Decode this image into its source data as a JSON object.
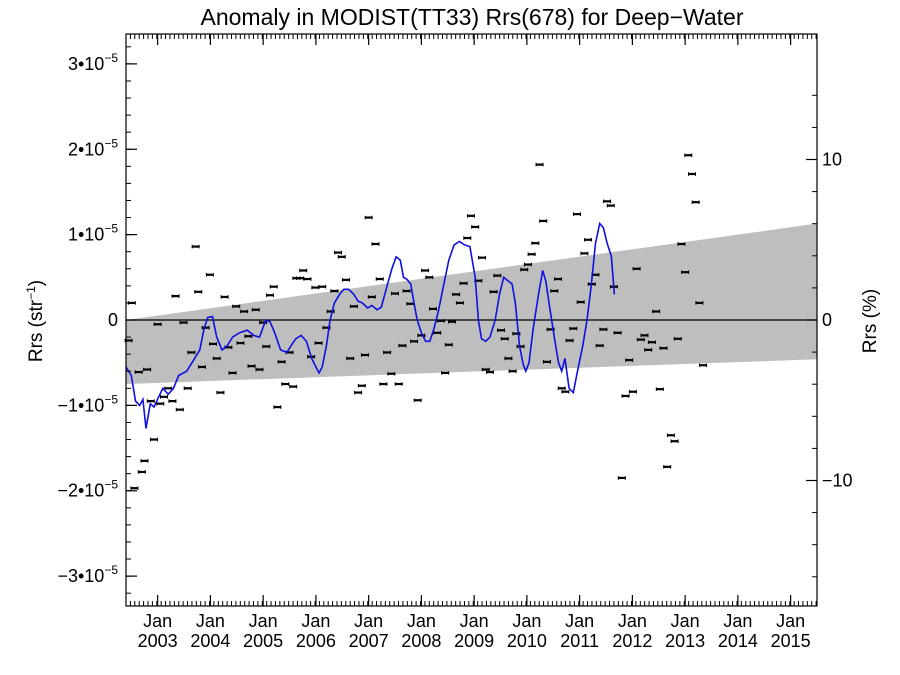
{
  "chart_data": {
    "type": "scatter",
    "title": "Anomaly in MODIST(TT33) Rrs(678) for Deep−Water",
    "ylabel_left": {
      "main": "Rrs (str",
      "sup": "−1",
      "close": ")"
    },
    "ylabel_right": "Rrs (%)",
    "xlim": [
      2002.4,
      2015.5
    ],
    "ylim": [
      -3.35e-05,
      3.35e-05
    ],
    "grid": false,
    "left_ticks": [
      {
        "value": 3e-05,
        "base": "3•10",
        "exp": "−5"
      },
      {
        "value": 2e-05,
        "base": "2•10",
        "exp": "−5"
      },
      {
        "value": 1e-05,
        "base": "1•10",
        "exp": "−5"
      },
      {
        "value": 0,
        "base": "0",
        "exp": ""
      },
      {
        "value": -1e-05,
        "base": "−1•10",
        "exp": "−5"
      },
      {
        "value": -2e-05,
        "base": "−2•10",
        "exp": "−5"
      },
      {
        "value": -3e-05,
        "base": "−3•10",
        "exp": "−5"
      }
    ],
    "right_ticks": [
      {
        "value": 1.88e-05,
        "label": "10"
      },
      {
        "value": 0,
        "label": "0"
      },
      {
        "value": -1.88e-05,
        "label": "−10"
      }
    ],
    "x_ticks": [
      {
        "value": 2003.0,
        "month": "Jan",
        "year": "2003"
      },
      {
        "value": 2004.0,
        "month": "Jan",
        "year": "2004"
      },
      {
        "value": 2005.0,
        "month": "Jan",
        "year": "2005"
      },
      {
        "value": 2006.0,
        "month": "Jan",
        "year": "2006"
      },
      {
        "value": 2007.0,
        "month": "Jan",
        "year": "2007"
      },
      {
        "value": 2008.0,
        "month": "Jan",
        "year": "2008"
      },
      {
        "value": 2009.0,
        "month": "Jan",
        "year": "2009"
      },
      {
        "value": 2010.0,
        "month": "Jan",
        "year": "2010"
      },
      {
        "value": 2011.0,
        "month": "Jan",
        "year": "2011"
      },
      {
        "value": 2012.0,
        "month": "Jan",
        "year": "2012"
      },
      {
        "value": 2013.0,
        "month": "Jan",
        "year": "2013"
      },
      {
        "value": 2014.0,
        "month": "Jan",
        "year": "2014"
      },
      {
        "value": 2015.0,
        "month": "Jan",
        "year": "2015"
      }
    ],
    "zero_line": 0,
    "band": {
      "color": "#bebebe",
      "upper": [
        [
          2002.4,
          0.0
        ],
        [
          2015.5,
          1.13e-05
        ]
      ],
      "lower": [
        [
          2002.4,
          -7.5e-06
        ],
        [
          2015.5,
          -4.6e-06
        ]
      ]
    },
    "colors": {
      "points": "#000000",
      "smooth": "#1010e0"
    },
    "points": [
      [
        2002.45,
        -2.4e-06
      ],
      [
        2002.51,
        2e-06
      ],
      [
        2002.56,
        -1.97e-05
      ],
      [
        2002.64,
        -6.1e-06
      ],
      [
        2002.7,
        -1.78e-05
      ],
      [
        2002.75,
        -1.65e-05
      ],
      [
        2002.8,
        -5.8e-06
      ],
      [
        2002.87,
        -9.5e-06
      ],
      [
        2002.93,
        -1.4e-05
      ],
      [
        2003.0,
        -5e-07
      ],
      [
        2003.05,
        -9.8e-06
      ],
      [
        2003.12,
        -9e-06
      ],
      [
        2003.2,
        -8e-06
      ],
      [
        2003.28,
        -9.5e-06
      ],
      [
        2003.34,
        2.8e-06
      ],
      [
        2003.42,
        -1.05e-05
      ],
      [
        2003.49,
        -3e-07
      ],
      [
        2003.57,
        -8e-06
      ],
      [
        2003.64,
        -3.8e-06
      ],
      [
        2003.72,
        8.6e-06
      ],
      [
        2003.77,
        3.3e-06
      ],
      [
        2003.84,
        -5.5e-06
      ],
      [
        2003.91,
        -9e-07
      ],
      [
        2003.99,
        5.3e-06
      ],
      [
        2004.05,
        -2.8e-06
      ],
      [
        2004.12,
        -4.5e-06
      ],
      [
        2004.19,
        -8.5e-06
      ],
      [
        2004.27,
        2.7e-06
      ],
      [
        2004.34,
        -3.2e-06
      ],
      [
        2004.42,
        -6.2e-06
      ],
      [
        2004.49,
        1.6e-06
      ],
      [
        2004.57,
        -2.7e-06
      ],
      [
        2004.64,
        1e-06
      ],
      [
        2004.72,
        -1.9e-06
      ],
      [
        2004.78,
        -5.4e-06
      ],
      [
        2004.86,
        1.2e-06
      ],
      [
        2004.93,
        -5.8e-06
      ],
      [
        2005.0,
        -3e-07
      ],
      [
        2005.06,
        -3.1e-06
      ],
      [
        2005.13,
        2.9e-06
      ],
      [
        2005.2,
        3.9e-06
      ],
      [
        2005.27,
        -1.02e-05
      ],
      [
        2005.35,
        -4.9e-06
      ],
      [
        2005.42,
        -7.5e-06
      ],
      [
        2005.5,
        -3.8e-06
      ],
      [
        2005.57,
        -7.8e-06
      ],
      [
        2005.63,
        4.9e-06
      ],
      [
        2005.7,
        4.9e-06
      ],
      [
        2005.76,
        5.8e-06
      ],
      [
        2005.84,
        4.8e-06
      ],
      [
        2005.91,
        -4.3e-06
      ],
      [
        2005.99,
        3.8e-06
      ],
      [
        2006.05,
        -2.7e-06
      ],
      [
        2006.12,
        3.9e-06
      ],
      [
        2006.2,
        -9e-07
      ],
      [
        2006.28,
        1e-06
      ],
      [
        2006.35,
        3.4e-06
      ],
      [
        2006.42,
        7.9e-06
      ],
      [
        2006.49,
        7.4e-06
      ],
      [
        2006.57,
        4.7e-06
      ],
      [
        2006.65,
        -4.5e-06
      ],
      [
        2006.72,
        1.6e-06
      ],
      [
        2006.8,
        -8.5e-06
      ],
      [
        2006.87,
        -7.7e-06
      ],
      [
        2006.93,
        -4.1e-06
      ],
      [
        2007.0,
        1.2e-05
      ],
      [
        2007.06,
        2.7e-06
      ],
      [
        2007.13,
        8.9e-06
      ],
      [
        2007.21,
        4.8e-06
      ],
      [
        2007.28,
        -7.5e-06
      ],
      [
        2007.35,
        -3.8e-06
      ],
      [
        2007.43,
        -6.3e-06
      ],
      [
        2007.5,
        3.1e-06
      ],
      [
        2007.57,
        -7.5e-06
      ],
      [
        2007.64,
        -3e-06
      ],
      [
        2007.72,
        3.4e-06
      ],
      [
        2007.79,
        1.9e-06
      ],
      [
        2007.86,
        -2.5e-06
      ],
      [
        2007.93,
        -9.4e-06
      ],
      [
        2008.0,
        -1.8e-06
      ],
      [
        2008.07,
        5.8e-06
      ],
      [
        2008.15,
        5e-06
      ],
      [
        2008.22,
        1.3e-06
      ],
      [
        2008.3,
        -1.5e-06
      ],
      [
        2008.37,
        -1e-07
      ],
      [
        2008.45,
        -6.2e-06
      ],
      [
        2008.52,
        -2.9e-06
      ],
      [
        2008.58,
        -2e-07
      ],
      [
        2008.66,
        3e-06
      ],
      [
        2008.73,
        2e-06
      ],
      [
        2008.8,
        4.3e-06
      ],
      [
        2008.87,
        9.6e-06
      ],
      [
        2008.94,
        1.22e-05
      ],
      [
        2009.02,
        1.09e-05
      ],
      [
        2009.08,
        4.6e-06
      ],
      [
        2009.15,
        7.3e-06
      ],
      [
        2009.22,
        -5.8e-06
      ],
      [
        2009.3,
        -6.1e-06
      ],
      [
        2009.37,
        3.3e-06
      ],
      [
        2009.44,
        5.2e-06
      ],
      [
        2009.51,
        -1.2e-06
      ],
      [
        2009.58,
        -2.2e-06
      ],
      [
        2009.65,
        -4.5e-06
      ],
      [
        2009.73,
        -6e-06
      ],
      [
        2009.8,
        -1.6e-06
      ],
      [
        2009.88,
        -3.1e-06
      ],
      [
        2009.95,
        5.9e-06
      ],
      [
        2010.02,
        6.5e-06
      ],
      [
        2010.09,
        7.7e-06
      ],
      [
        2010.16,
        9e-06
      ],
      [
        2010.24,
        1.82e-05
      ],
      [
        2010.31,
        1.16e-05
      ],
      [
        2010.38,
        -4.9e-06
      ],
      [
        2010.45,
        -1.1e-06
      ],
      [
        2010.52,
        3.4e-06
      ],
      [
        2010.59,
        4.8e-06
      ],
      [
        2010.66,
        -8e-06
      ],
      [
        2010.73,
        -8.4e-06
      ],
      [
        2010.81,
        -2.4e-06
      ],
      [
        2010.88,
        -1e-06
      ],
      [
        2010.95,
        1.24e-05
      ],
      [
        2011.02,
        2.1e-06
      ],
      [
        2011.09,
        7.8e-06
      ],
      [
        2011.16,
        9.4e-06
      ],
      [
        2011.23,
        4.2e-06
      ],
      [
        2011.3,
        5.3e-06
      ],
      [
        2011.38,
        -3e-06
      ],
      [
        2011.45,
        -1.1e-06
      ],
      [
        2011.52,
        1.39e-05
      ],
      [
        2011.59,
        1.34e-05
      ],
      [
        2011.65,
        3.9e-06
      ],
      [
        2011.72,
        -1.5e-06
      ],
      [
        2011.8,
        -1.85e-05
      ],
      [
        2011.87,
        -8.9e-06
      ],
      [
        2011.94,
        -4.7e-06
      ],
      [
        2012.01,
        -8.4e-06
      ],
      [
        2012.08,
        6e-06
      ],
      [
        2012.16,
        -2.3e-06
      ],
      [
        2012.23,
        -1.8e-06
      ],
      [
        2012.3,
        -3.5e-06
      ],
      [
        2012.37,
        -2.6e-06
      ],
      [
        2012.45,
        1e-06
      ],
      [
        2012.52,
        -8.1e-06
      ],
      [
        2012.59,
        -3.3e-06
      ],
      [
        2012.66,
        -1.72e-05
      ],
      [
        2012.73,
        -1.35e-05
      ],
      [
        2012.8,
        -1.42e-05
      ],
      [
        2012.86,
        -2.2e-06
      ],
      [
        2012.93,
        8.9e-06
      ],
      [
        2013.0,
        5.6e-06
      ],
      [
        2013.06,
        1.93e-05
      ],
      [
        2013.13,
        1.71e-05
      ],
      [
        2013.2,
        1.38e-05
      ],
      [
        2013.27,
        2e-06
      ],
      [
        2013.34,
        -5.3e-06
      ]
    ],
    "smooth": [
      [
        2002.4,
        -5.5e-06
      ],
      [
        2002.5,
        -6.5e-06
      ],
      [
        2002.58,
        -9.5e-06
      ],
      [
        2002.66,
        -1e-05
      ],
      [
        2002.72,
        -9.3e-06
      ],
      [
        2002.78,
        -1.27e-05
      ],
      [
        2002.86,
        -9.8e-06
      ],
      [
        2002.93,
        -1.02e-05
      ],
      [
        2003.02,
        -9e-06
      ],
      [
        2003.1,
        -8e-06
      ],
      [
        2003.2,
        -8.7e-06
      ],
      [
        2003.3,
        -8e-06
      ],
      [
        2003.4,
        -6.5e-06
      ],
      [
        2003.55,
        -6e-06
      ],
      [
        2003.7,
        -4.5e-06
      ],
      [
        2003.8,
        -3.5e-06
      ],
      [
        2003.88,
        -1e-06
      ],
      [
        2003.95,
        3e-07
      ],
      [
        2004.04,
        4e-07
      ],
      [
        2004.12,
        -2e-06
      ],
      [
        2004.22,
        -3.5e-06
      ],
      [
        2004.32,
        -3e-06
      ],
      [
        2004.42,
        -2e-06
      ],
      [
        2004.55,
        -1.5e-06
      ],
      [
        2004.7,
        -1.2e-06
      ],
      [
        2004.82,
        -1.8e-06
      ],
      [
        2004.93,
        -2e-06
      ],
      [
        2005.05,
        0.0
      ],
      [
        2005.13,
        -2e-07
      ],
      [
        2005.22,
        -1.5e-06
      ],
      [
        2005.33,
        -3.5e-06
      ],
      [
        2005.45,
        -3.8e-06
      ],
      [
        2005.53,
        -3e-06
      ],
      [
        2005.62,
        -2.2e-06
      ],
      [
        2005.72,
        -1.8e-06
      ],
      [
        2005.82,
        -2.5e-06
      ],
      [
        2005.92,
        -4.5e-06
      ],
      [
        2006.0,
        -5.5e-06
      ],
      [
        2006.06,
        -6.2e-06
      ],
      [
        2006.12,
        -5.5e-06
      ],
      [
        2006.2,
        -3e-06
      ],
      [
        2006.27,
        0.0
      ],
      [
        2006.35,
        2e-06
      ],
      [
        2006.45,
        3e-06
      ],
      [
        2006.53,
        3.6e-06
      ],
      [
        2006.62,
        3.6e-06
      ],
      [
        2006.72,
        3e-06
      ],
      [
        2006.8,
        2.2e-06
      ],
      [
        2006.88,
        2e-06
      ],
      [
        2006.98,
        1.4e-06
      ],
      [
        2007.06,
        1.7e-06
      ],
      [
        2007.16,
        1.2e-06
      ],
      [
        2007.24,
        1.5e-06
      ],
      [
        2007.34,
        3.8e-06
      ],
      [
        2007.44,
        6e-06
      ],
      [
        2007.52,
        7.4e-06
      ],
      [
        2007.6,
        7e-06
      ],
      [
        2007.66,
        5e-06
      ],
      [
        2007.72,
        4.8e-06
      ],
      [
        2007.8,
        4.2e-06
      ],
      [
        2007.86,
        2e-06
      ],
      [
        2007.92,
        0.0
      ],
      [
        2008.0,
        -1.5e-06
      ],
      [
        2008.08,
        -2.5e-06
      ],
      [
        2008.16,
        -2.5e-06
      ],
      [
        2008.24,
        -1e-06
      ],
      [
        2008.32,
        1e-06
      ],
      [
        2008.42,
        4e-06
      ],
      [
        2008.52,
        7e-06
      ],
      [
        2008.62,
        8.8e-06
      ],
      [
        2008.72,
        9.2e-06
      ],
      [
        2008.82,
        8.8e-06
      ],
      [
        2008.92,
        8.6e-06
      ],
      [
        2009.02,
        5e-06
      ],
      [
        2009.08,
        0.0
      ],
      [
        2009.14,
        -2.2e-06
      ],
      [
        2009.22,
        -2.5e-06
      ],
      [
        2009.3,
        -2e-06
      ],
      [
        2009.4,
        0.0
      ],
      [
        2009.48,
        3e-06
      ],
      [
        2009.56,
        5e-06
      ],
      [
        2009.64,
        4.6e-06
      ],
      [
        2009.72,
        4.2e-06
      ],
      [
        2009.78,
        2e-06
      ],
      [
        2009.86,
        -3e-06
      ],
      [
        2009.93,
        -5.2e-06
      ],
      [
        2009.98,
        -6e-06
      ],
      [
        2010.04,
        -5e-06
      ],
      [
        2010.12,
        -1e-06
      ],
      [
        2010.22,
        3e-06
      ],
      [
        2010.3,
        5.8e-06
      ],
      [
        2010.36,
        4.5e-06
      ],
      [
        2010.42,
        2e-06
      ],
      [
        2010.52,
        -2e-06
      ],
      [
        2010.6,
        -5e-06
      ],
      [
        2010.66,
        -6e-06
      ],
      [
        2010.72,
        -4.5e-06
      ],
      [
        2010.8,
        -8e-06
      ],
      [
        2010.88,
        -8.5e-06
      ],
      [
        2010.96,
        -6e-06
      ],
      [
        2011.06,
        -3e-06
      ],
      [
        2011.14,
        0.0
      ],
      [
        2011.22,
        4e-06
      ],
      [
        2011.3,
        9e-06
      ],
      [
        2011.38,
        1.13e-05
      ],
      [
        2011.45,
        1.08e-05
      ],
      [
        2011.52,
        9e-06
      ],
      [
        2011.6,
        7.5e-06
      ],
      [
        2011.66,
        3e-06
      ]
    ]
  }
}
